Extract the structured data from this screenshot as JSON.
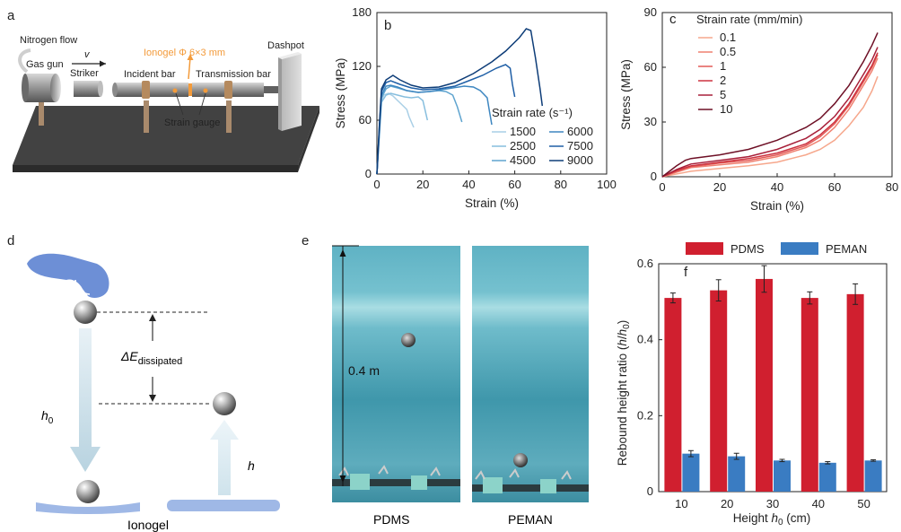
{
  "panels": {
    "a": "a",
    "b": "b",
    "c": "c",
    "d": "d",
    "e": "e",
    "f": "f"
  },
  "panel_a": {
    "nitrogen_flow": "Nitrogen flow",
    "gas_gun": "Gas gun",
    "v": "v",
    "striker": "Striker",
    "incident_bar": "Incident bar",
    "ionogel_size": "Ionogel Φ 6×3 mm",
    "transmission_bar": "Transmission bar",
    "dashpot": "Dashpot",
    "strain_gauge": "Strain gauge",
    "colors": {
      "ionogel": "#f39b3b",
      "base": "#3d3d3d"
    }
  },
  "panel_d": {
    "delta_e": "ΔE",
    "delta_e_sub": "dissipated",
    "h0": "h",
    "h0_sub": "0",
    "h": "h",
    "ionogel": "Ionogel",
    "colors": {
      "hand": "#6d8fd6",
      "pad": "#9fb8e6"
    }
  },
  "panel_e": {
    "height_label": "0.4 m",
    "pdms": "PDMS",
    "peman": "PEMAN"
  },
  "chart_data": [
    {
      "type": "line",
      "panel": "b",
      "title": "",
      "xlabel": "Strain (%)",
      "ylabel": "Stress (MPa)",
      "xlim": [
        0,
        100
      ],
      "ylim": [
        0,
        180
      ],
      "xticks": [
        0,
        20,
        40,
        60,
        80,
        100
      ],
      "yticks": [
        0,
        60,
        120,
        180
      ],
      "legend_title": "Strain rate (s⁻¹)",
      "series": [
        {
          "name": "1500",
          "color": "#a9cfe6",
          "x": [
            0,
            1,
            2,
            3,
            5,
            7,
            9,
            11,
            13,
            14,
            16
          ],
          "y": [
            0,
            40,
            80,
            88,
            90,
            87,
            82,
            77,
            72,
            64,
            52
          ]
        },
        {
          "name": "2500",
          "color": "#86bede",
          "x": [
            0,
            1,
            2,
            4,
            6,
            9,
            12,
            15,
            18,
            20,
            22
          ],
          "y": [
            0,
            42,
            80,
            88,
            90,
            88,
            86,
            85,
            86,
            82,
            60
          ]
        },
        {
          "name": "4500",
          "color": "#5fa4cf",
          "x": [
            0,
            1,
            2,
            4,
            6,
            9,
            13,
            18,
            23,
            27,
            30,
            33,
            35,
            37
          ],
          "y": [
            0,
            45,
            85,
            95,
            98,
            96,
            93,
            91,
            92,
            93,
            92,
            88,
            75,
            58
          ]
        },
        {
          "name": "6000",
          "color": "#3d86c0",
          "x": [
            0,
            1,
            2,
            4,
            6,
            9,
            13,
            18,
            23,
            28,
            33,
            38,
            42,
            45,
            48,
            49,
            50
          ],
          "y": [
            0,
            45,
            88,
            98,
            99,
            97,
            93,
            91,
            92,
            94,
            96,
            98,
            97,
            93,
            85,
            70,
            55
          ]
        },
        {
          "name": "7500",
          "color": "#1f5fa6",
          "x": [
            0,
            1,
            2,
            4,
            6,
            10,
            15,
            20,
            27,
            34,
            40,
            46,
            52,
            56,
            58,
            59,
            60
          ],
          "y": [
            0,
            50,
            92,
            102,
            104,
            100,
            96,
            94,
            95,
            98,
            104,
            110,
            118,
            122,
            118,
            100,
            86
          ]
        },
        {
          "name": "9000",
          "color": "#0e3d78",
          "x": [
            0,
            1,
            2,
            4,
            7,
            10,
            15,
            20,
            27,
            34,
            42,
            50,
            56,
            62,
            65,
            67,
            69,
            71,
            72
          ],
          "y": [
            0,
            52,
            95,
            105,
            110,
            105,
            99,
            96,
            97,
            102,
            112,
            125,
            137,
            152,
            162,
            160,
            130,
            95,
            76
          ]
        }
      ]
    },
    {
      "type": "line",
      "panel": "c",
      "title": "",
      "xlabel": "Strain (%)",
      "ylabel": "Stress (MPa)",
      "xlim": [
        0,
        80
      ],
      "ylim": [
        0,
        90
      ],
      "xticks": [
        0,
        20,
        40,
        60,
        80
      ],
      "yticks": [
        0,
        30,
        60,
        90
      ],
      "legend_title": "Strain rate (mm/min)",
      "series": [
        {
          "name": "0.1",
          "color": "#f6a78c",
          "x": [
            0,
            5,
            10,
            20,
            30,
            40,
            50,
            55,
            60,
            65,
            70,
            73,
            75
          ],
          "y": [
            0,
            1.5,
            3,
            4.5,
            6,
            8,
            12,
            15,
            20,
            28,
            38,
            47,
            55
          ]
        },
        {
          "name": "0.5",
          "color": "#ef8171",
          "x": [
            0,
            5,
            10,
            20,
            30,
            40,
            50,
            55,
            60,
            65,
            70,
            73,
            75
          ],
          "y": [
            0,
            2.5,
            5,
            6.5,
            8,
            11,
            16,
            20,
            27,
            37,
            50,
            58,
            65
          ]
        },
        {
          "name": "1",
          "color": "#e25a57",
          "x": [
            0,
            5,
            10,
            20,
            30,
            40,
            50,
            55,
            60,
            65,
            70,
            73,
            75
          ],
          "y": [
            0,
            3,
            5.5,
            7.5,
            9,
            12,
            17,
            22,
            29,
            39,
            52,
            60,
            67
          ]
        },
        {
          "name": "2",
          "color": "#cc3340",
          "x": [
            0,
            5,
            10,
            20,
            30,
            40,
            50,
            55,
            60,
            65,
            70,
            73,
            75
          ],
          "y": [
            0,
            3.5,
            6,
            8,
            10,
            13,
            18,
            23,
            30,
            40,
            53,
            61,
            68
          ]
        },
        {
          "name": "5",
          "color": "#a8203a",
          "x": [
            0,
            5,
            10,
            20,
            30,
            40,
            50,
            55,
            60,
            65,
            70,
            73,
            75
          ],
          "y": [
            0,
            4,
            7,
            9,
            11,
            15,
            21,
            26,
            33,
            43,
            56,
            64,
            71
          ]
        },
        {
          "name": "10",
          "color": "#6e1026",
          "x": [
            0,
            5,
            8,
            10,
            20,
            30,
            40,
            50,
            55,
            60,
            65,
            70,
            73,
            75
          ],
          "y": [
            0,
            6,
            9,
            10,
            12,
            15,
            20,
            27,
            32,
            40,
            50,
            63,
            72,
            79
          ]
        }
      ]
    },
    {
      "type": "bar",
      "panel": "f",
      "title": "",
      "xlabel": "Height h0 (cm)",
      "xlabel_parts": {
        "pre": "Height ",
        "h": "h",
        "sub": "0",
        "post": " (cm)"
      },
      "ylabel": "Rebound height ratio (h/h0)",
      "ylabel_parts": {
        "pre": "Rebound height ratio (",
        "h": "h",
        "slash": "/",
        "h2": "h",
        "sub": "0",
        "post": ")"
      },
      "categories": [
        "10",
        "20",
        "30",
        "40",
        "50"
      ],
      "ylim": [
        0,
        0.6
      ],
      "yticks": [
        "0",
        "0.2",
        "0.4",
        "0.6"
      ],
      "legend_placement": "top",
      "series": [
        {
          "name": "PDMS",
          "color": "#d01f2f",
          "values": [
            0.51,
            0.53,
            0.56,
            0.51,
            0.52
          ],
          "errors": [
            0.013,
            0.028,
            0.035,
            0.016,
            0.027
          ]
        },
        {
          "name": "PEMAN",
          "color": "#3a7cc2",
          "values": [
            0.1,
            0.093,
            0.082,
            0.076,
            0.082
          ],
          "errors": [
            0.008,
            0.008,
            0.003,
            0.003,
            0.002
          ]
        }
      ]
    }
  ]
}
